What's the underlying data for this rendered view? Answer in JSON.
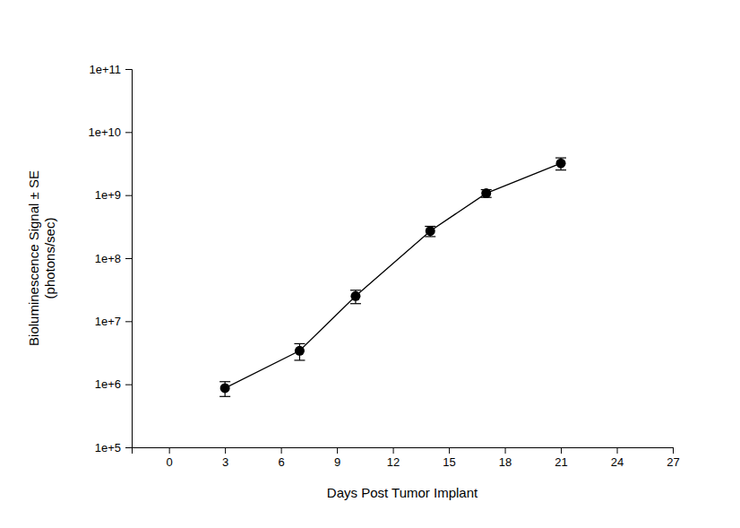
{
  "chart_data": {
    "type": "line",
    "x_label": "Days Post Tumor Implant",
    "y_label": [
      "Bioluminescence Signal ± SE",
      "(photons/sec)"
    ],
    "x": [
      3,
      7,
      10,
      14,
      17,
      21
    ],
    "values": [
      870000,
      3400000,
      25000000,
      270000000,
      1070000000,
      3200000000
    ],
    "errors": [
      230000,
      1000000,
      6000000,
      50000000,
      150000000,
      700000000
    ],
    "color": "#000000",
    "marker": "circle",
    "line_style": "solid",
    "log": "y",
    "xlim": [
      -2,
      27
    ],
    "xticks": [
      0,
      3,
      6,
      9,
      12,
      15,
      18,
      21,
      24,
      27
    ],
    "ylim": [
      100000,
      100000000000
    ],
    "yticks": [
      {
        "value": 100000,
        "label": "1e+5"
      },
      {
        "value": 1000000,
        "label": "1e+6"
      },
      {
        "value": 10000000,
        "label": "1e+7"
      },
      {
        "value": 100000000,
        "label": "1e+8"
      },
      {
        "value": 1000000000,
        "label": "1e+9"
      },
      {
        "value": 10000000000,
        "label": "1e+10"
      },
      {
        "value": 100000000000,
        "label": "1e+11"
      }
    ],
    "grid": false
  }
}
